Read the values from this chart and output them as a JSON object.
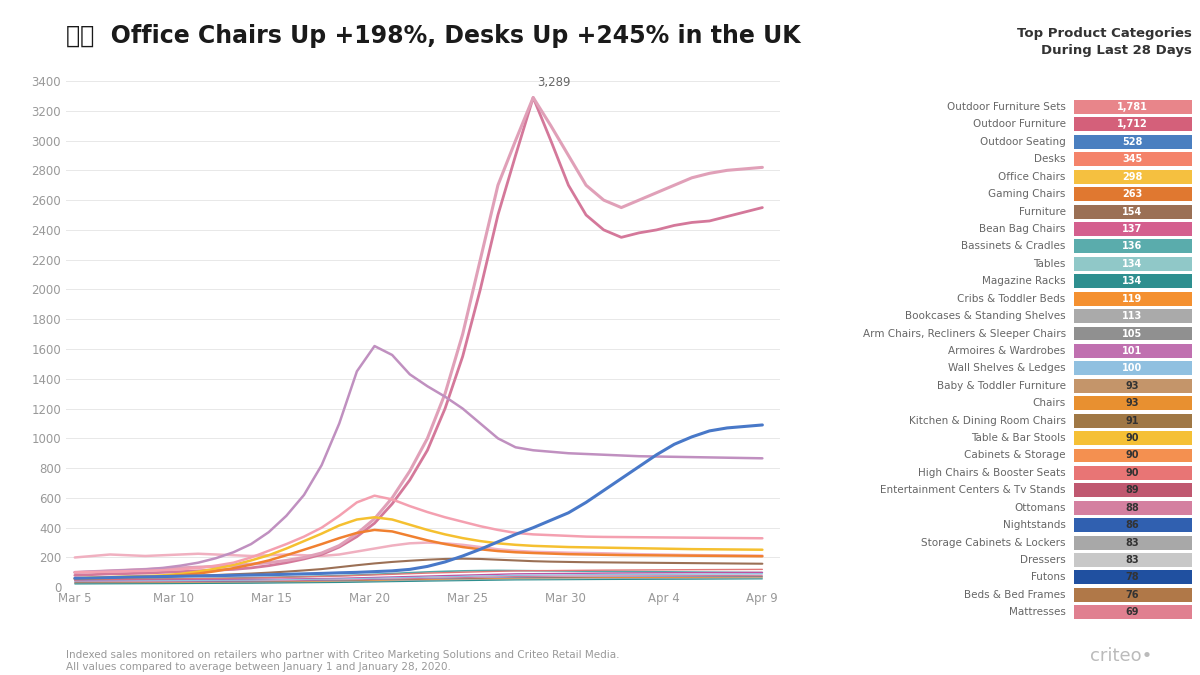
{
  "title": "Office Chairs Up +198%, Desks Up +245% in the UK",
  "subtitle_footnote": "Indexed sales monitored on retailers who partner with Criteo Marketing Solutions and Criteo Retail Media.\nAll values compared to average between January 1 and January 28, 2020.",
  "x_labels": [
    "Mar 5",
    "Mar 10",
    "Mar 15",
    "Mar 20",
    "Mar 25",
    "Mar 30",
    "Apr 4",
    "Apr 9"
  ],
  "ylim": [
    0,
    3400
  ],
  "annotation_text": "3,289",
  "background_color": "#ffffff",
  "legend_title": "Top Product Categories\nDuring Last 28 Days",
  "legend_items": [
    {
      "label": "Outdoor Furniture Sets",
      "value": "1,781",
      "color": "#e8858a"
    },
    {
      "label": "Outdoor Furniture",
      "value": "1,712",
      "color": "#d4607a"
    },
    {
      "label": "Outdoor Seating",
      "value": "528",
      "color": "#4a7fc0"
    },
    {
      "label": "Desks",
      "value": "345",
      "color": "#f4836a"
    },
    {
      "label": "Office Chairs",
      "value": "298",
      "color": "#f5c040"
    },
    {
      "label": "Gaming Chairs",
      "value": "263",
      "color": "#e07830"
    },
    {
      "label": "Furniture",
      "value": "154",
      "color": "#9b7055"
    },
    {
      "label": "Bean Bag Chairs",
      "value": "137",
      "color": "#d45f8e"
    },
    {
      "label": "Bassinets & Cradles",
      "value": "136",
      "color": "#5aacac"
    },
    {
      "label": "Tables",
      "value": "134",
      "color": "#90c8c8"
    },
    {
      "label": "Magazine Racks",
      "value": "134",
      "color": "#2e8f8f"
    },
    {
      "label": "Cribs & Toddler Beds",
      "value": "119",
      "color": "#f49030"
    },
    {
      "label": "Bookcases & Standing Shelves",
      "value": "113",
      "color": "#aaaaaa"
    },
    {
      "label": "Arm Chairs, Recliners & Sleeper Chairs",
      "value": "105",
      "color": "#909090"
    },
    {
      "label": "Armoires & Wardrobes",
      "value": "101",
      "color": "#c070b0"
    },
    {
      "label": "Wall Shelves & Ledges",
      "value": "100",
      "color": "#90c0e0"
    },
    {
      "label": "Baby & Toddler Furniture",
      "value": "93",
      "color": "#c4956a"
    },
    {
      "label": "Chairs",
      "value": "93",
      "color": "#e89030"
    },
    {
      "label": "Kitchen & Dining Room Chairs",
      "value": "91",
      "color": "#a07845"
    },
    {
      "label": "Table & Bar Stools",
      "value": "90",
      "color": "#f5c035"
    },
    {
      "label": "Cabinets & Storage",
      "value": "90",
      "color": "#f49050"
    },
    {
      "label": "High Chairs & Booster Seats",
      "value": "90",
      "color": "#e87575"
    },
    {
      "label": "Entertainment Centers & Tv Stands",
      "value": "89",
      "color": "#c05870"
    },
    {
      "label": "Ottomans",
      "value": "88",
      "color": "#d480a0"
    },
    {
      "label": "Nightstands",
      "value": "86",
      "color": "#3060b0"
    },
    {
      "label": "Storage Cabinets & Lockers",
      "value": "83",
      "color": "#a8a8a8"
    },
    {
      "label": "Dressers",
      "value": "83",
      "color": "#c8c8c8"
    },
    {
      "label": "Futons",
      "value": "78",
      "color": "#2050a0"
    },
    {
      "label": "Beds & Bed Frames",
      "value": "76",
      "color": "#b07848"
    },
    {
      "label": "Mattresses",
      "value": "69",
      "color": "#e08090"
    }
  ],
  "lines": [
    {
      "name": "outdoor_sets_top",
      "color": "#e0a0b8",
      "linewidth": 2.2,
      "zorder": 5,
      "data_x": [
        0,
        1,
        2,
        3,
        4,
        5,
        6,
        7,
        8,
        9,
        10,
        11,
        12,
        13,
        14,
        15,
        16,
        17,
        18,
        19,
        20,
        21,
        22,
        23,
        24,
        25,
        26,
        27,
        28,
        29,
        30,
        31,
        32,
        33,
        34,
        35,
        36,
        37,
        38,
        39
      ],
      "data_y": [
        100,
        105,
        110,
        115,
        120,
        125,
        130,
        135,
        140,
        145,
        155,
        165,
        180,
        200,
        230,
        280,
        360,
        460,
        600,
        780,
        1000,
        1300,
        1700,
        2200,
        2700,
        3000,
        3289,
        3100,
        2900,
        2700,
        2600,
        2550,
        2600,
        2650,
        2700,
        2750,
        2780,
        2800,
        2810,
        2820
      ]
    },
    {
      "name": "outdoor_furniture_2nd",
      "color": "#d4789a",
      "linewidth": 2.0,
      "zorder": 4,
      "data_x": [
        0,
        1,
        2,
        3,
        4,
        5,
        6,
        7,
        8,
        9,
        10,
        11,
        12,
        13,
        14,
        15,
        16,
        17,
        18,
        19,
        20,
        21,
        22,
        23,
        24,
        25,
        26,
        27,
        28,
        29,
        30,
        31,
        32,
        33,
        34,
        35,
        36,
        37,
        38,
        39
      ],
      "data_y": [
        80,
        85,
        90,
        92,
        95,
        100,
        105,
        110,
        115,
        120,
        130,
        145,
        165,
        190,
        220,
        270,
        340,
        430,
        560,
        720,
        920,
        1200,
        1550,
        2000,
        2500,
        2900,
        3289,
        3000,
        2700,
        2500,
        2400,
        2350,
        2380,
        2400,
        2430,
        2450,
        2460,
        2490,
        2520,
        2550
      ]
    },
    {
      "name": "outdoor_seating_flat_pink",
      "color": "#f0b0c0",
      "linewidth": 1.8,
      "zorder": 3,
      "data_x": [
        0,
        1,
        2,
        3,
        4,
        5,
        6,
        7,
        8,
        9,
        10,
        11,
        12,
        13,
        14,
        15,
        16,
        17,
        18,
        19,
        20,
        21,
        22,
        23,
        24,
        25,
        26,
        27,
        28,
        29,
        30,
        31,
        32,
        33,
        34,
        35,
        36,
        37,
        38,
        39
      ],
      "data_y": [
        200,
        210,
        220,
        215,
        210,
        215,
        220,
        225,
        220,
        215,
        210,
        215,
        220,
        215,
        210,
        220,
        240,
        260,
        280,
        295,
        300,
        295,
        285,
        270,
        255,
        245,
        238,
        235,
        232,
        230,
        228,
        225,
        222,
        220,
        218,
        216,
        215,
        214,
        213,
        212
      ]
    },
    {
      "name": "pink_hump_600",
      "color": "#f4a0b0",
      "linewidth": 1.8,
      "zorder": 6,
      "data_x": [
        0,
        1,
        2,
        3,
        4,
        5,
        6,
        7,
        8,
        9,
        10,
        11,
        12,
        13,
        14,
        15,
        16,
        17,
        18,
        19,
        20,
        21,
        22,
        23,
        24,
        25,
        26,
        27,
        28,
        29,
        30,
        31,
        32,
        33,
        34,
        35,
        36,
        37,
        38,
        39
      ],
      "data_y": [
        100,
        102,
        105,
        108,
        110,
        115,
        120,
        130,
        145,
        165,
        200,
        245,
        290,
        340,
        400,
        480,
        570,
        615,
        590,
        545,
        505,
        470,
        440,
        410,
        385,
        365,
        355,
        350,
        345,
        340,
        338,
        337,
        336,
        335,
        334,
        333,
        332,
        331,
        330,
        329
      ]
    },
    {
      "name": "purple_hump_1600",
      "color": "#c090c0",
      "linewidth": 1.8,
      "zorder": 5,
      "data_x": [
        0,
        1,
        2,
        3,
        4,
        5,
        6,
        7,
        8,
        9,
        10,
        11,
        12,
        13,
        14,
        15,
        16,
        17,
        18,
        19,
        20,
        21,
        22,
        23,
        24,
        25,
        26,
        27,
        28,
        29,
        30,
        31,
        32,
        33,
        34,
        35,
        36,
        37,
        38,
        39
      ],
      "data_y": [
        100,
        105,
        110,
        115,
        120,
        130,
        145,
        165,
        195,
        235,
        290,
        370,
        480,
        620,
        820,
        1100,
        1450,
        1620,
        1560,
        1430,
        1350,
        1280,
        1200,
        1100,
        1000,
        940,
        920,
        910,
        900,
        895,
        890,
        885,
        880,
        878,
        876,
        874,
        872,
        870,
        868,
        866
      ]
    },
    {
      "name": "blue_rising",
      "color": "#4878c8",
      "linewidth": 2.2,
      "zorder": 7,
      "data_x": [
        0,
        1,
        2,
        3,
        4,
        5,
        6,
        7,
        8,
        9,
        10,
        11,
        12,
        13,
        14,
        15,
        16,
        17,
        18,
        19,
        20,
        21,
        22,
        23,
        24,
        25,
        26,
        27,
        28,
        29,
        30,
        31,
        32,
        33,
        34,
        35,
        36,
        37,
        38,
        39
      ],
      "data_y": [
        60,
        62,
        65,
        68,
        70,
        72,
        74,
        76,
        78,
        80,
        82,
        84,
        87,
        90,
        93,
        97,
        100,
        105,
        110,
        120,
        140,
        170,
        210,
        255,
        305,
        355,
        400,
        450,
        500,
        570,
        650,
        730,
        810,
        890,
        960,
        1010,
        1050,
        1070,
        1080,
        1090
      ]
    },
    {
      "name": "yellow_hump",
      "color": "#f5c030",
      "linewidth": 1.8,
      "zorder": 5,
      "data_x": [
        0,
        1,
        2,
        3,
        4,
        5,
        6,
        7,
        8,
        9,
        10,
        11,
        12,
        13,
        14,
        15,
        16,
        17,
        18,
        19,
        20,
        21,
        22,
        23,
        24,
        25,
        26,
        27,
        28,
        29,
        30,
        31,
        32,
        33,
        34,
        35,
        36,
        37,
        38,
        39
      ],
      "data_y": [
        60,
        65,
        68,
        72,
        75,
        80,
        90,
        105,
        125,
        150,
        180,
        215,
        260,
        310,
        360,
        415,
        455,
        470,
        455,
        420,
        385,
        355,
        330,
        310,
        295,
        285,
        278,
        274,
        270,
        268,
        266,
        264,
        262,
        260,
        258,
        256,
        255,
        254,
        253,
        252
      ]
    },
    {
      "name": "orange_hump",
      "color": "#f08030",
      "linewidth": 1.8,
      "zorder": 5,
      "data_x": [
        0,
        1,
        2,
        3,
        4,
        5,
        6,
        7,
        8,
        9,
        10,
        11,
        12,
        13,
        14,
        15,
        16,
        17,
        18,
        19,
        20,
        21,
        22,
        23,
        24,
        25,
        26,
        27,
        28,
        29,
        30,
        31,
        32,
        33,
        34,
        35,
        36,
        37,
        38,
        39
      ],
      "data_y": [
        55,
        58,
        62,
        65,
        68,
        72,
        80,
        92,
        108,
        128,
        152,
        180,
        215,
        252,
        290,
        330,
        365,
        385,
        375,
        345,
        315,
        290,
        270,
        255,
        243,
        235,
        230,
        226,
        222,
        220,
        218,
        216,
        215,
        214,
        213,
        212,
        211,
        210,
        209,
        208
      ]
    },
    {
      "name": "brown_flat",
      "color": "#9b7055",
      "linewidth": 1.5,
      "zorder": 3,
      "data_x": [
        0,
        1,
        2,
        3,
        4,
        5,
        6,
        7,
        8,
        9,
        10,
        11,
        12,
        13,
        14,
        15,
        16,
        17,
        18,
        19,
        20,
        21,
        22,
        23,
        24,
        25,
        26,
        27,
        28,
        29,
        30,
        31,
        32,
        33,
        34,
        35,
        36,
        37,
        38,
        39
      ],
      "data_y": [
        60,
        63,
        65,
        68,
        70,
        72,
        75,
        78,
        82,
        87,
        92,
        98,
        105,
        113,
        122,
        135,
        148,
        160,
        170,
        178,
        185,
        190,
        192,
        190,
        185,
        180,
        175,
        172,
        170,
        168,
        167,
        166,
        165,
        164,
        163,
        162,
        161,
        160,
        159,
        158
      ]
    },
    {
      "name": "teal_flat",
      "color": "#50a8a8",
      "linewidth": 1.2,
      "zorder": 2,
      "data_x": [
        0,
        1,
        2,
        3,
        4,
        5,
        6,
        7,
        8,
        9,
        10,
        11,
        12,
        13,
        14,
        15,
        16,
        17,
        18,
        19,
        20,
        21,
        22,
        23,
        24,
        25,
        26,
        27,
        28,
        29,
        30,
        31,
        32,
        33,
        34,
        35,
        36,
        37,
        38,
        39
      ],
      "data_y": [
        50,
        52,
        53,
        54,
        55,
        56,
        57,
        58,
        60,
        62,
        64,
        66,
        69,
        72,
        75,
        78,
        82,
        87,
        92,
        98,
        103,
        107,
        110,
        112,
        113,
        112,
        111,
        110,
        109,
        108,
        107,
        106,
        105,
        104,
        103,
        102,
        101,
        100,
        99,
        98
      ]
    },
    {
      "name": "many_small_lines_1",
      "color": "#e07878",
      "linewidth": 1.0,
      "zorder": 2,
      "data_x": [
        0,
        5,
        10,
        15,
        20,
        25,
        30,
        35,
        39
      ],
      "data_y": [
        50,
        55,
        62,
        75,
        95,
        110,
        115,
        118,
        120
      ]
    },
    {
      "name": "many_small_lines_2",
      "color": "#c050a0",
      "linewidth": 1.0,
      "zorder": 2,
      "data_x": [
        0,
        5,
        10,
        15,
        20,
        25,
        30,
        35,
        39
      ],
      "data_y": [
        45,
        48,
        52,
        60,
        75,
        90,
        95,
        98,
        100
      ]
    },
    {
      "name": "many_small_lines_3",
      "color": "#90c0e0",
      "linewidth": 1.0,
      "zorder": 2,
      "data_x": [
        0,
        5,
        10,
        15,
        20,
        25,
        30,
        35,
        39
      ],
      "data_y": [
        40,
        43,
        47,
        55,
        68,
        80,
        85,
        88,
        90
      ]
    },
    {
      "name": "many_small_lines_4",
      "color": "#d4789a",
      "linewidth": 0.8,
      "zorder": 2,
      "data_x": [
        0,
        5,
        10,
        15,
        20,
        25,
        30,
        35,
        39
      ],
      "data_y": [
        35,
        37,
        40,
        48,
        60,
        72,
        76,
        78,
        80
      ]
    },
    {
      "name": "many_small_lines_5",
      "color": "#3060b0",
      "linewidth": 0.8,
      "zorder": 2,
      "data_x": [
        0,
        5,
        10,
        15,
        20,
        25,
        30,
        35,
        39
      ],
      "data_y": [
        30,
        32,
        35,
        42,
        53,
        63,
        67,
        69,
        71
      ]
    },
    {
      "name": "many_small_lines_6",
      "color": "#f49030",
      "linewidth": 0.8,
      "zorder": 2,
      "data_x": [
        0,
        5,
        10,
        15,
        20,
        25,
        30,
        35,
        39
      ],
      "data_y": [
        28,
        30,
        33,
        40,
        51,
        60,
        64,
        66,
        68
      ]
    },
    {
      "name": "many_small_lines_7",
      "color": "#aaaaaa",
      "linewidth": 0.8,
      "zorder": 2,
      "data_x": [
        0,
        5,
        10,
        15,
        20,
        25,
        30,
        35,
        39
      ],
      "data_y": [
        25,
        27,
        30,
        36,
        46,
        55,
        58,
        60,
        62
      ]
    },
    {
      "name": "many_small_lines_8",
      "color": "#2e8f8f",
      "linewidth": 0.8,
      "zorder": 2,
      "data_x": [
        0,
        5,
        10,
        15,
        20,
        25,
        30,
        35,
        39
      ],
      "data_y": [
        22,
        24,
        27,
        32,
        41,
        49,
        52,
        54,
        56
      ]
    }
  ]
}
